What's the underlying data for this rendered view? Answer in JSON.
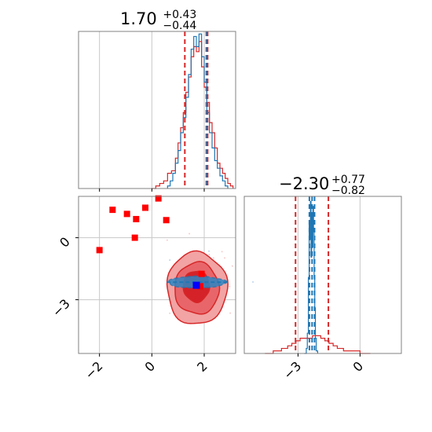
{
  "colors": {
    "red": "#d62728",
    "blue": "#1f77b4",
    "axis": "#808080",
    "grid": "#c8c8c8",
    "marker_red": "#ff0000",
    "marker_blue": "#0000ff",
    "fill_light": "#f2a3a3",
    "fill_mid": "#e8666a",
    "fill_dark": "#d42228"
  },
  "titles": [
    {
      "main": "1.70",
      "sup": "+0.43",
      "sub": "−0.44"
    },
    {
      "main": "−2.30",
      "sup": "+0.77",
      "sub": "−0.82"
    }
  ],
  "chart_data": {
    "type": "corner",
    "param1": {
      "lim": [
        -2.8,
        3.2
      ],
      "ticks": [
        -2,
        0,
        2
      ],
      "tick_labels": [
        "−2",
        "0",
        "2"
      ],
      "median": 1.7,
      "q_low": 1.26,
      "q_high": 2.13,
      "blue_lines": [
        2.08,
        2.11
      ],
      "hist_max": 62,
      "grid": true
    },
    "param2": {
      "lim": [
        -5.6,
        2.0
      ],
      "ticks": [
        -3,
        0
      ],
      "tick_labels": [
        "−3",
        "0"
      ],
      "median": -2.3,
      "q_low": -3.12,
      "q_high": -1.53,
      "blue_lines": [
        -2.45,
        -2.32,
        -2.2
      ],
      "hist_max": 62,
      "grid": true
    },
    "hist1_red": [
      [
        0.0,
        0
      ],
      [
        0.15,
        1
      ],
      [
        0.3,
        2
      ],
      [
        0.45,
        3
      ],
      [
        0.6,
        6
      ],
      [
        0.75,
        7
      ],
      [
        0.9,
        12
      ],
      [
        1.0,
        18
      ],
      [
        1.1,
        24
      ],
      [
        1.2,
        30
      ],
      [
        1.3,
        38
      ],
      [
        1.4,
        44
      ],
      [
        1.5,
        52
      ],
      [
        1.6,
        56
      ],
      [
        1.7,
        54
      ],
      [
        1.8,
        58
      ],
      [
        1.9,
        48
      ],
      [
        2.0,
        40
      ],
      [
        2.1,
        34
      ],
      [
        2.2,
        26
      ],
      [
        2.3,
        22
      ],
      [
        2.4,
        16
      ],
      [
        2.5,
        10
      ],
      [
        2.6,
        8
      ],
      [
        2.7,
        6
      ],
      [
        2.8,
        4
      ],
      [
        2.9,
        2
      ],
      [
        3.0,
        1
      ],
      [
        3.1,
        0
      ]
    ],
    "hist1_blue": [
      [
        0.6,
        1
      ],
      [
        0.7,
        3
      ],
      [
        0.8,
        6
      ],
      [
        0.9,
        10
      ],
      [
        1.0,
        15
      ],
      [
        1.1,
        22
      ],
      [
        1.2,
        28
      ],
      [
        1.3,
        36
      ],
      [
        1.4,
        45
      ],
      [
        1.5,
        55
      ],
      [
        1.6,
        60
      ],
      [
        1.7,
        56
      ],
      [
        1.8,
        61
      ],
      [
        1.9,
        52
      ],
      [
        2.0,
        42
      ],
      [
        2.1,
        30
      ],
      [
        2.2,
        22
      ],
      [
        2.3,
        16
      ],
      [
        2.4,
        11
      ],
      [
        2.5,
        8
      ],
      [
        2.6,
        5
      ],
      [
        2.7,
        3
      ],
      [
        2.8,
        1
      ],
      [
        2.9,
        0
      ]
    ],
    "hist2_red": [
      [
        -4.6,
        0
      ],
      [
        -4.2,
        1
      ],
      [
        -3.8,
        2
      ],
      [
        -3.5,
        3
      ],
      [
        -3.3,
        4
      ],
      [
        -3.1,
        5
      ],
      [
        -2.9,
        6
      ],
      [
        -2.7,
        6
      ],
      [
        -2.5,
        6
      ],
      [
        -2.3,
        7
      ],
      [
        -2.1,
        7
      ],
      [
        -1.9,
        6
      ],
      [
        -1.7,
        5
      ],
      [
        -1.5,
        4
      ],
      [
        -1.3,
        3
      ],
      [
        -1.1,
        2
      ],
      [
        -0.8,
        1
      ],
      [
        -0.4,
        1
      ],
      [
        0.0,
        0
      ],
      [
        0.5,
        0
      ]
    ],
    "hist2_blue": [
      [
        -2.7,
        0
      ],
      [
        -2.6,
        2
      ],
      [
        -2.55,
        8
      ],
      [
        -2.5,
        30
      ],
      [
        -2.46,
        52
      ],
      [
        -2.43,
        45
      ],
      [
        -2.4,
        60
      ],
      [
        -2.37,
        38
      ],
      [
        -2.34,
        55
      ],
      [
        -2.31,
        42
      ],
      [
        -2.28,
        58
      ],
      [
        -2.25,
        48
      ],
      [
        -2.22,
        30
      ],
      [
        -2.19,
        18
      ],
      [
        -2.16,
        6
      ],
      [
        -2.12,
        1
      ],
      [
        -2.05,
        0
      ]
    ],
    "markers_red": [
      [
        -2.0,
        -0.6
      ],
      [
        -1.5,
        1.35
      ],
      [
        -0.95,
        1.15
      ],
      [
        -0.6,
        0.9
      ],
      [
        -0.65,
        0.0
      ],
      [
        -0.25,
        1.45
      ],
      [
        0.25,
        1.9
      ],
      [
        0.55,
        0.85
      ],
      [
        1.9,
        -1.75
      ],
      [
        1.85,
        -2.35
      ]
    ],
    "marker_blue": [
      1.7,
      -2.3
    ],
    "contours": [
      {
        "level": "outer",
        "cx": 1.72,
        "cy": -2.45,
        "rx": 1.15,
        "ry": 1.75
      },
      {
        "level": "mid",
        "cx": 1.72,
        "cy": -2.45,
        "rx": 0.85,
        "ry": 1.25
      },
      {
        "level": "inner",
        "cx": 1.7,
        "cy": -2.35,
        "rx": 0.5,
        "ry": 0.75
      }
    ],
    "blue_band": {
      "cx": 1.72,
      "cy": -2.15,
      "rx": 1.1,
      "ry": 0.28
    }
  }
}
